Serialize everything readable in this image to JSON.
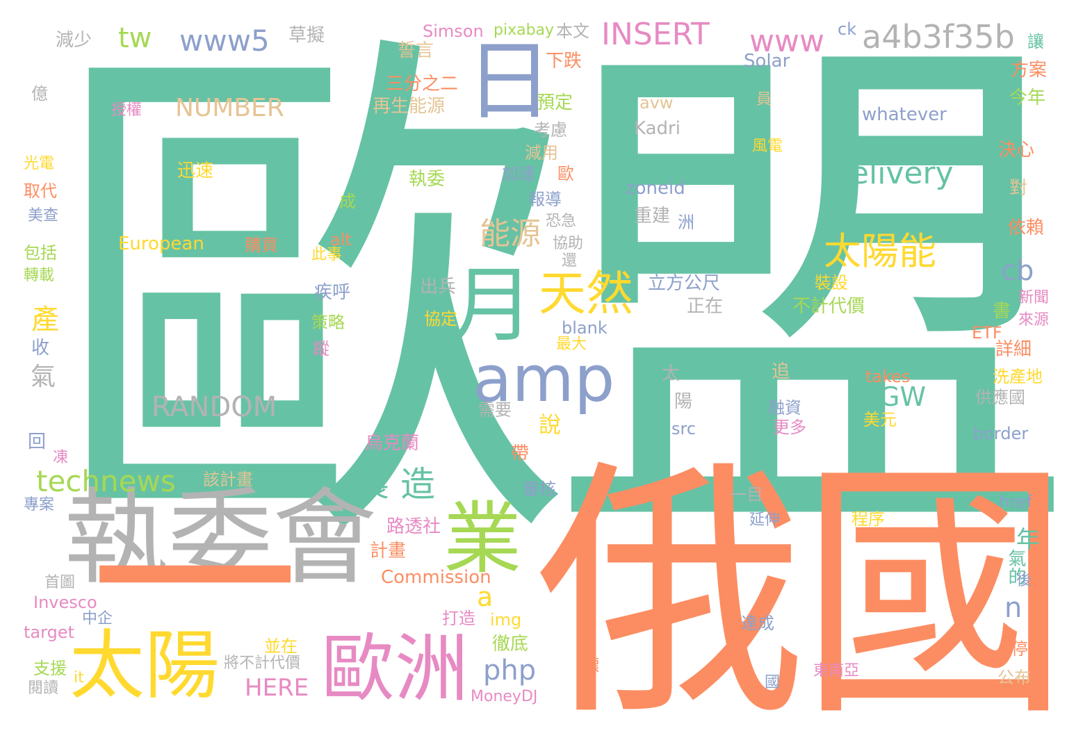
{
  "palette": {
    "teal": "#66c2a5",
    "orange": "#fc8d62",
    "blue": "#8da0cb",
    "pink": "#e78ac3",
    "green": "#a6d854",
    "yellow": "#ffd92f",
    "tan": "#e5c494",
    "gray": "#b3b3b3"
  },
  "words": [
    {
      "text": "歐盟",
      "color": "teal"
    },
    {
      "text": "俄國",
      "color": "orange"
    },
    {
      "text": "執委會",
      "color": "gray"
    },
    {
      "text": "日",
      "color": "blue"
    },
    {
      "text": "太陽",
      "color": "yellow"
    },
    {
      "text": "歐洲",
      "color": "pink"
    },
    {
      "text": "業",
      "color": "green"
    },
    {
      "text": "月",
      "color": "teal"
    },
    {
      "text": "天然",
      "color": "yellow"
    },
    {
      "text": "amp",
      "color": "blue"
    },
    {
      "text": "一",
      "color": "orange"
    },
    {
      "text": "太陽能",
      "color": "yellow"
    },
    {
      "text": "a4b3f35b",
      "color": "gray"
    },
    {
      "text": "INSERT",
      "color": "pink"
    },
    {
      "text": "www5",
      "color": "blue"
    },
    {
      "text": "www",
      "color": "pink"
    },
    {
      "text": "tw",
      "color": "green"
    },
    {
      "text": "delivery",
      "color": "teal"
    },
    {
      "text": "能源",
      "color": "tan"
    },
    {
      "text": "NUMBER",
      "color": "tan"
    },
    {
      "text": "RANDOM",
      "color": "gray"
    },
    {
      "text": "technews",
      "color": "green"
    },
    {
      "text": "製造",
      "color": "teal"
    },
    {
      "text": "cb",
      "color": "blue"
    },
    {
      "text": "php",
      "color": "blue"
    },
    {
      "text": "GW",
      "color": "teal"
    },
    {
      "text": "產",
      "color": "yellow"
    },
    {
      "text": "n",
      "color": "blue"
    },
    {
      "text": "a",
      "color": "yellow"
    },
    {
      "text": "HERE",
      "color": "pink"
    },
    {
      "text": "Commission",
      "color": "orange"
    },
    {
      "text": "European",
      "color": "yellow"
    },
    {
      "text": "whatever",
      "color": "blue"
    },
    {
      "text": "Kadri",
      "color": "gray"
    },
    {
      "text": "zoneid",
      "color": "blue"
    },
    {
      "text": "Solar",
      "color": "blue"
    },
    {
      "text": "Simson",
      "color": "pink"
    },
    {
      "text": "pixabay",
      "color": "green"
    },
    {
      "text": "本文",
      "color": "gray"
    },
    {
      "text": "ck",
      "color": "blue"
    },
    {
      "text": "草擬",
      "color": "gray"
    },
    {
      "text": "減少",
      "color": "gray"
    },
    {
      "text": "誓言",
      "color": "tan"
    },
    {
      "text": "下跌",
      "color": "orange"
    },
    {
      "text": "三分之二",
      "color": "orange"
    },
    {
      "text": "再生能源",
      "color": "tan"
    },
    {
      "text": "預定",
      "color": "green"
    },
    {
      "text": "avw",
      "color": "tan"
    },
    {
      "text": "考慮",
      "color": "gray"
    },
    {
      "text": "迅速",
      "color": "yellow"
    },
    {
      "text": "減用",
      "color": "tan"
    },
    {
      "text": "加速",
      "color": "blue"
    },
    {
      "text": "執委",
      "color": "green"
    },
    {
      "text": "報導",
      "color": "blue"
    },
    {
      "text": "重建",
      "color": "gray"
    },
    {
      "text": "購買",
      "color": "orange"
    },
    {
      "text": "協助",
      "color": "gray"
    },
    {
      "text": "立方公尺",
      "color": "blue"
    },
    {
      "text": "出兵",
      "color": "gray"
    },
    {
      "text": "正在",
      "color": "gray"
    },
    {
      "text": "裝設",
      "color": "yellow"
    },
    {
      "text": "不計代價",
      "color": "green"
    },
    {
      "text": "blank",
      "color": "blue"
    },
    {
      "text": "最大",
      "color": "yellow"
    },
    {
      "text": "疾呼",
      "color": "blue"
    },
    {
      "text": "策略",
      "color": "green"
    },
    {
      "text": "協定",
      "color": "yellow"
    },
    {
      "text": "此事",
      "color": "yellow"
    },
    {
      "text": "alt",
      "color": "orange"
    },
    {
      "text": "說",
      "color": "yellow"
    },
    {
      "text": "需要",
      "color": "gray"
    },
    {
      "text": "src",
      "color": "blue"
    },
    {
      "text": "融資",
      "color": "blue"
    },
    {
      "text": "更多",
      "color": "pink"
    },
    {
      "text": "takes",
      "color": "orange"
    },
    {
      "text": "美元",
      "color": "yellow"
    },
    {
      "text": "供應國",
      "color": "gray"
    },
    {
      "text": "border",
      "color": "blue"
    },
    {
      "text": "烏克蘭",
      "color": "pink"
    },
    {
      "text": "該計畫",
      "color": "tan"
    },
    {
      "text": "審核",
      "color": "blue"
    },
    {
      "text": "路透社",
      "color": "pink"
    },
    {
      "text": "計畫",
      "color": "orange"
    },
    {
      "text": "一目",
      "color": "gray"
    },
    {
      "text": "延伸",
      "color": "blue"
    },
    {
      "text": "程序",
      "color": "yellow"
    },
    {
      "text": "href",
      "color": "blue"
    },
    {
      "text": "Invesco",
      "color": "pink"
    },
    {
      "text": "首圖",
      "color": "gray"
    },
    {
      "text": "中企",
      "color": "blue"
    },
    {
      "text": "target",
      "color": "pink"
    },
    {
      "text": "打造",
      "color": "pink"
    },
    {
      "text": "img",
      "color": "yellow"
    },
    {
      "text": "徹底",
      "color": "green"
    },
    {
      "text": "達成",
      "color": "blue"
    },
    {
      "text": "並在",
      "color": "yellow"
    },
    {
      "text": "將不計代價",
      "color": "gray"
    },
    {
      "text": "支援",
      "color": "green"
    },
    {
      "text": "it",
      "color": "yellow"
    },
    {
      "text": "閱讀",
      "color": "gray"
    },
    {
      "text": "MoneyDJ",
      "color": "pink"
    },
    {
      "text": "東南亞",
      "color": "pink"
    },
    {
      "text": "停用",
      "color": "orange"
    },
    {
      "text": "公布",
      "color": "tan"
    },
    {
      "text": "億",
      "color": "gray"
    },
    {
      "text": "授權",
      "color": "pink"
    },
    {
      "text": "光電",
      "color": "yellow"
    },
    {
      "text": "取代",
      "color": "orange"
    },
    {
      "text": "美查",
      "color": "blue"
    },
    {
      "text": "包括",
      "color": "green"
    },
    {
      "text": "轉載",
      "color": "green"
    },
    {
      "text": "回",
      "color": "blue"
    },
    {
      "text": "凍",
      "color": "pink"
    },
    {
      "text": "專案",
      "color": "blue"
    },
    {
      "text": "收",
      "color": "blue"
    },
    {
      "text": "氣",
      "color": "gray"
    },
    {
      "text": "帶",
      "color": "orange"
    },
    {
      "text": "標",
      "color": "orange"
    },
    {
      "text": "國",
      "color": "blue"
    },
    {
      "text": "讓",
      "color": "teal"
    },
    {
      "text": "方案",
      "color": "orange"
    },
    {
      "text": "今年",
      "color": "green"
    },
    {
      "text": "決心",
      "color": "orange"
    },
    {
      "text": "對",
      "color": "tan"
    },
    {
      "text": "依賴",
      "color": "orange"
    },
    {
      "text": "新聞",
      "color": "pink"
    },
    {
      "text": "來源",
      "color": "pink"
    },
    {
      "text": "ETF",
      "color": "orange"
    },
    {
      "text": "詳細",
      "color": "orange"
    },
    {
      "text": "洗產地",
      "color": "yellow"
    },
    {
      "text": "書",
      "color": "green"
    },
    {
      "text": "年",
      "color": "teal"
    },
    {
      "text": "氣的",
      "color": "teal"
    },
    {
      "text": "後",
      "color": "blue"
    },
    {
      "text": "成",
      "color": "green"
    },
    {
      "text": "恐急",
      "color": "gray"
    },
    {
      "text": "還",
      "color": "gray"
    },
    {
      "text": "歐",
      "color": "orange"
    },
    {
      "text": "洲",
      "color": "blue"
    },
    {
      "text": "風電",
      "color": "yellow"
    },
    {
      "text": "員",
      "color": "tan"
    },
    {
      "text": "太",
      "color": "gray"
    },
    {
      "text": "陽",
      "color": "gray"
    },
    {
      "text": "追",
      "color": "tan"
    },
    {
      "text": "蹤",
      "color": "pink"
    }
  ]
}
